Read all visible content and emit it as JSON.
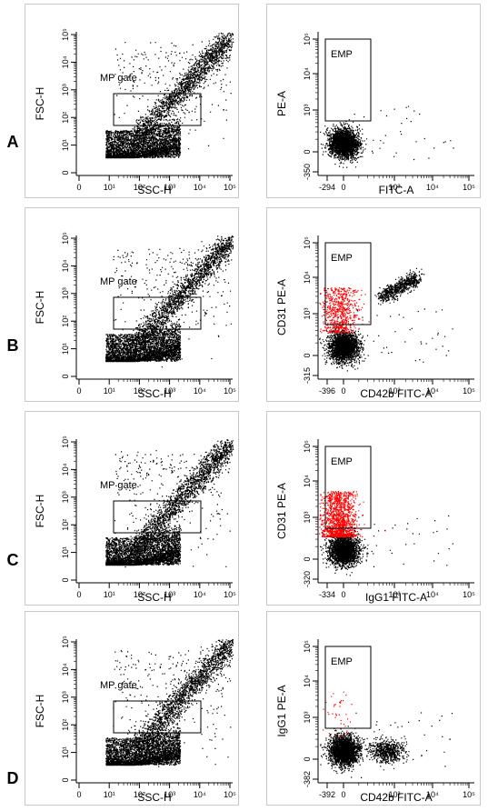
{
  "rows": [
    {
      "letter": "A"
    },
    {
      "letter": "B"
    },
    {
      "letter": "C"
    },
    {
      "letter": "D"
    }
  ],
  "chart_data": [
    {
      "type": "scatter",
      "panel": "A-left",
      "xlabel": "SSC-H",
      "ylabel": "FSC-H",
      "x_ticks": [
        "0",
        "10¹",
        "10²",
        "10³",
        "10⁴",
        "10⁵"
      ],
      "y_ticks": [
        "0",
        "10¹",
        "10²",
        "10³",
        "10⁴",
        "10⁵"
      ],
      "gate_label": "MP gate",
      "xscale": "log",
      "yscale": "log"
    },
    {
      "type": "scatter",
      "panel": "A-right",
      "xlabel": "FITC-A",
      "ylabel": "PE-A",
      "x_ticks": [
        "-294",
        "0",
        "10³",
        "10⁴",
        "10⁵"
      ],
      "y_ticks": [
        "-350",
        "0",
        "10³",
        "10⁴",
        "10⁵"
      ],
      "gate_label": "EMP",
      "red_density": 0,
      "right_cluster": "none"
    },
    {
      "type": "scatter",
      "panel": "B-left",
      "xlabel": "SSC-H",
      "ylabel": "FSC-H",
      "x_ticks": [
        "0",
        "10¹",
        "10²",
        "10³",
        "10⁴",
        "10⁵"
      ],
      "y_ticks": [
        "0",
        "10¹",
        "10²",
        "10³",
        "10⁴",
        "10⁵"
      ],
      "gate_label": "MP gate",
      "xscale": "log",
      "yscale": "log"
    },
    {
      "type": "scatter",
      "panel": "B-right",
      "xlabel": "CD42b FITC-A",
      "ylabel": "CD31 PE-A",
      "x_ticks": [
        "-396",
        "0",
        "10³",
        "10⁴",
        "10⁵"
      ],
      "y_ticks": [
        "-315",
        "0",
        "10³",
        "10⁴",
        "10⁵"
      ],
      "gate_label": "EMP",
      "red_density": 0.5,
      "right_cluster": "diagonal"
    },
    {
      "type": "scatter",
      "panel": "C-left",
      "xlabel": "SSC-H",
      "ylabel": "FSC-H",
      "x_ticks": [
        "0",
        "10¹",
        "10²",
        "10³",
        "10⁴",
        "10⁵"
      ],
      "y_ticks": [
        "0",
        "10¹",
        "10²",
        "10³",
        "10⁴",
        "10⁵"
      ],
      "gate_label": "MP gate",
      "xscale": "log",
      "yscale": "log"
    },
    {
      "type": "scatter",
      "panel": "C-right",
      "xlabel": "IgG1 FITC-A",
      "ylabel": "CD31 PE-A",
      "x_ticks": [
        "-334",
        "0",
        "10³",
        "10⁴",
        "10⁵"
      ],
      "y_ticks": [
        "-320",
        "0",
        "10³",
        "10⁴",
        "10⁵"
      ],
      "gate_label": "EMP",
      "red_density": 1.0,
      "right_cluster": "none"
    },
    {
      "type": "scatter",
      "panel": "D-left",
      "xlabel": "SSC-H",
      "ylabel": "FSC-H",
      "x_ticks": [
        "0",
        "10¹",
        "10²",
        "10³",
        "10⁴",
        "10⁵"
      ],
      "y_ticks": [
        "0",
        "10¹",
        "10²",
        "10³",
        "10⁴",
        "10⁵"
      ],
      "gate_label": "MP gate",
      "xscale": "log",
      "yscale": "log"
    },
    {
      "type": "scatter",
      "panel": "D-right",
      "xlabel": "CD42b FITC-A",
      "ylabel": "IgG1 PE-A",
      "x_ticks": [
        "-392",
        "0",
        "10³",
        "10⁴",
        "10⁵"
      ],
      "y_ticks": [
        "-382",
        "0",
        "10³",
        "10⁴",
        "10⁵"
      ],
      "gate_label": "EMP",
      "red_density": 0.03,
      "right_cluster": "horizontal"
    }
  ],
  "colors": {
    "events": "#000000",
    "gated_events": "#ff0000",
    "frame": "#c8c8c8"
  }
}
